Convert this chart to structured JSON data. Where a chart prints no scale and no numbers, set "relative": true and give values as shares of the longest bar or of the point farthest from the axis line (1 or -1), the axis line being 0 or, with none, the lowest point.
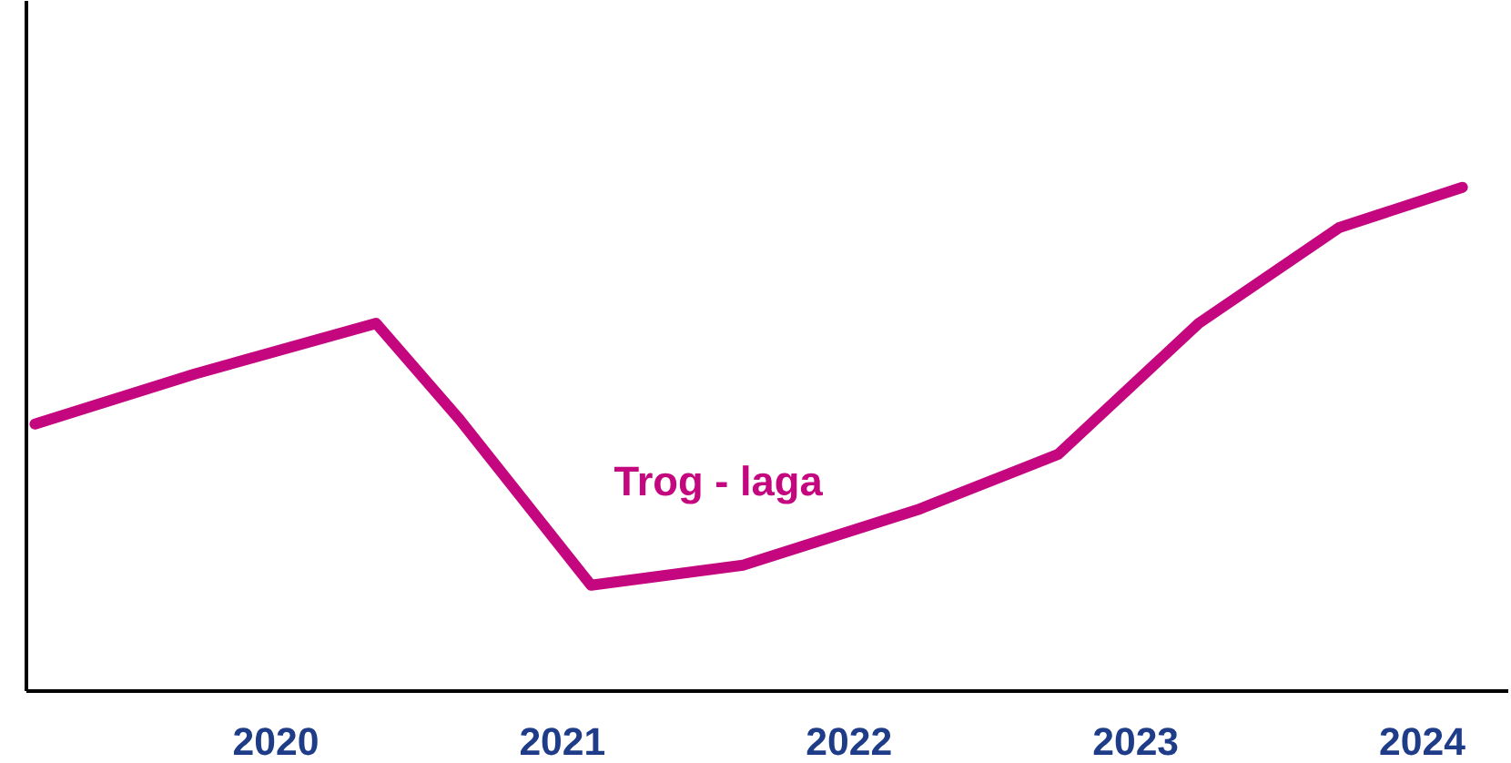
{
  "chart_data": {
    "type": "line",
    "relative": true,
    "grid": false,
    "xlim": [
      2019.13,
      2024.3
    ],
    "xticks": [
      2020,
      2021,
      2022,
      2023,
      2024
    ],
    "tick_labels": "x",
    "series": [
      {
        "name": "Trog - laga",
        "color": "#c4067f",
        "x": [
          2019.16,
          2019.72,
          2020.35,
          2020.64,
          2021.1,
          2021.63,
          2022.24,
          2022.73,
          2023.22,
          2023.71,
          2024.14
        ],
        "values": [
          0.53,
          0.63,
          0.73,
          0.54,
          0.21,
          0.25,
          0.36,
          0.47,
          0.73,
          0.92,
          1.0
        ]
      }
    ]
  }
}
